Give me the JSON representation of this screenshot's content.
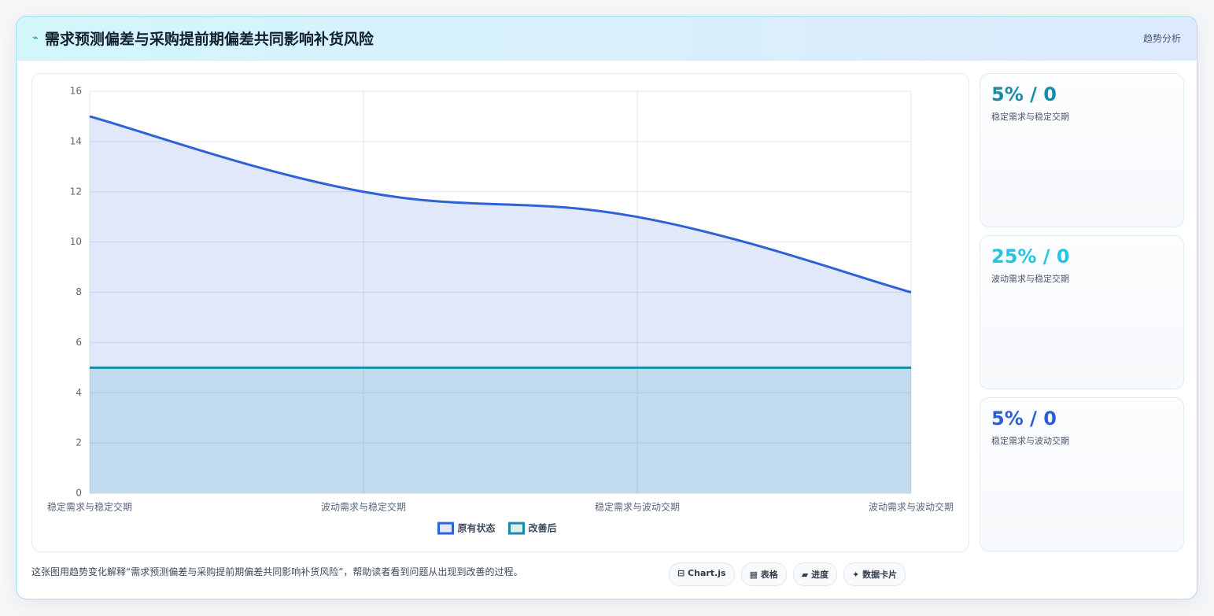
{
  "header": {
    "icon": "⌁",
    "title": "需求预测偏差与采购提前期偏差共同影响补货风险",
    "tag": "趋势分析"
  },
  "chart_data": {
    "type": "line",
    "area": true,
    "categories": [
      "稳定需求与稳定交期",
      "波动需求与稳定交期",
      "稳定需求与波动交期",
      "波动需求与波动交期"
    ],
    "series": [
      {
        "name": "原有状态",
        "color": "#2f62d6",
        "fill": "rgba(47,98,214,0.15)",
        "values": [
          15,
          12,
          11,
          8
        ]
      },
      {
        "name": "改善后",
        "color": "#1a8ca8",
        "fill": "rgba(26,140,168,0.15)",
        "values": [
          5,
          5,
          5,
          5
        ]
      }
    ],
    "ylim": [
      0,
      16
    ],
    "yticks": [
      0,
      2,
      4,
      6,
      8,
      10,
      12,
      14,
      16
    ],
    "grid": true,
    "legend": "bottom"
  },
  "cards": [
    {
      "value": "5% / 0",
      "label": "稳定需求与稳定交期",
      "color": "#1a8ca8"
    },
    {
      "value": "25% / 0",
      "label": "波动需求与稳定交期",
      "color": "#22c6e0"
    },
    {
      "value": "5% / 0",
      "label": "稳定需求与波动交期",
      "color": "#2b5fd9"
    }
  ],
  "footer": {
    "caption": "这张图用趋势变化解释“需求预测偏差与采购提前期偏差共同影响补货风险”，帮助读者看到问题从出现到改善的过程。",
    "chips": [
      "⊟ Chart.js",
      "▦ 表格",
      "▰ 进度",
      "✦ 数据卡片"
    ]
  }
}
